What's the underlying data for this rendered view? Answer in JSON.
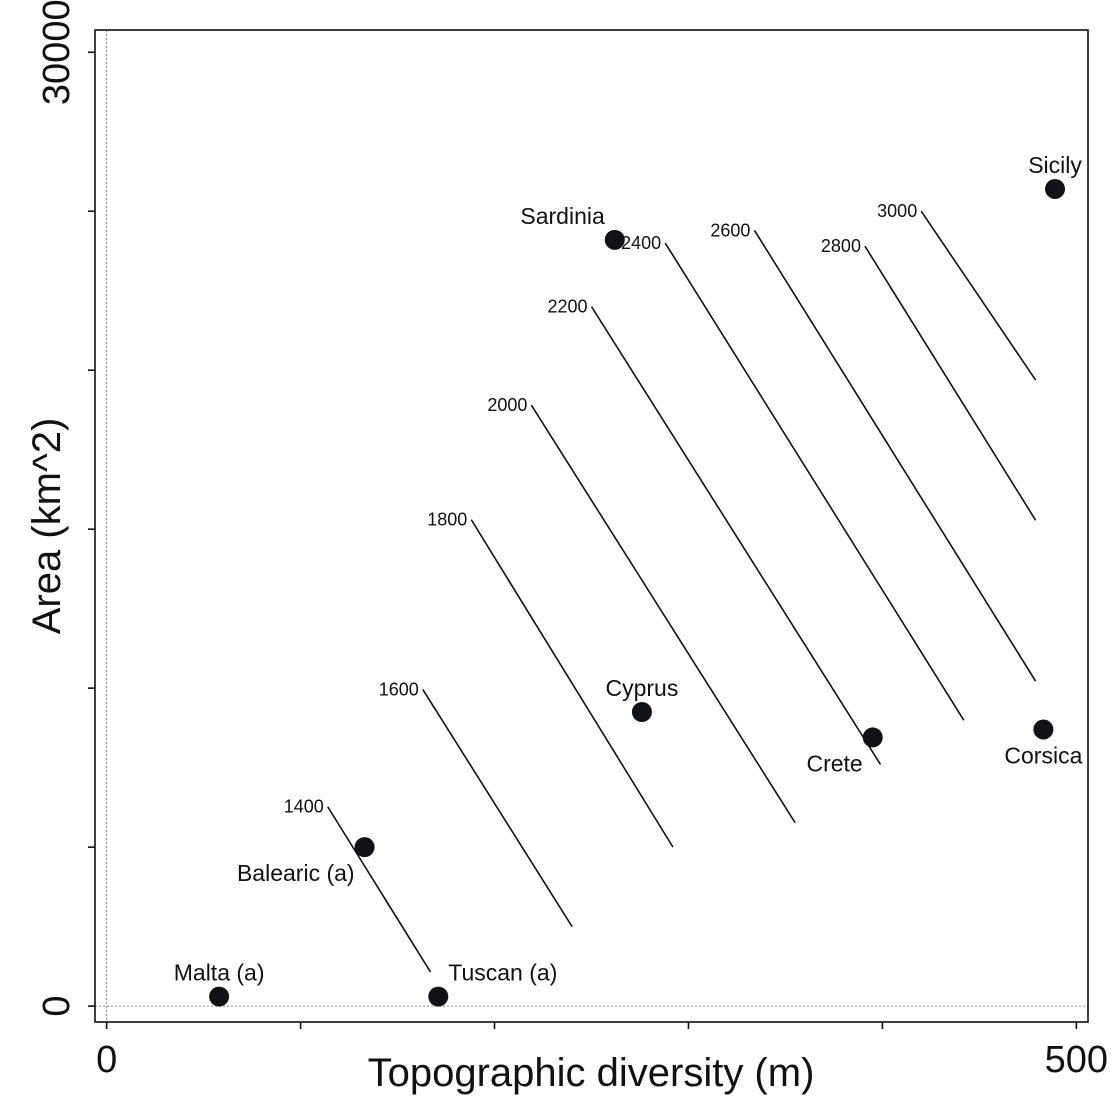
{
  "chart_data": {
    "type": "scatter",
    "title": "",
    "xlabel": "Topographic diversity (m)",
    "ylabel": "Area (km^2)",
    "xlim": [
      -6,
      506
    ],
    "ylim": [
      -500,
      30700
    ],
    "x_ticks": [
      0,
      100,
      200,
      300,
      400,
      500
    ],
    "x_tick_labels": [
      "0",
      "",
      "",
      "",
      "",
      "500"
    ],
    "y_ticks": [
      0,
      5000,
      10000,
      15000,
      20000,
      25000,
      30000
    ],
    "y_tick_labels": [
      "0",
      "",
      "",
      "",
      "",
      "",
      "30000"
    ],
    "grid": false,
    "reference_lines": {
      "x": 0,
      "y": 0,
      "style": "dotted"
    },
    "points": [
      {
        "label": "Malta (a)",
        "x": 58,
        "y": 300
      },
      {
        "label": "Tuscan (a)",
        "x": 171,
        "y": 300
      },
      {
        "label": "Balearic (a)",
        "x": 133,
        "y": 5000
      },
      {
        "label": "Cyprus",
        "x": 276,
        "y": 9250
      },
      {
        "label": "Crete",
        "x": 395,
        "y": 8450
      },
      {
        "label": "Corsica",
        "x": 483,
        "y": 8700
      },
      {
        "label": "Sardinia",
        "x": 262,
        "y": 24100
      },
      {
        "label": "Sicily",
        "x": 489,
        "y": 25700
      }
    ],
    "contours": [
      {
        "level": "1400",
        "x1": 114,
        "y1": 6270,
        "x2": 167,
        "y2": 1070
      },
      {
        "level": "1600",
        "x1": 163,
        "y1": 9960,
        "x2": 240,
        "y2": 2500
      },
      {
        "level": "1800",
        "x1": 188,
        "y1": 15300,
        "x2": 292,
        "y2": 5000
      },
      {
        "level": "2000",
        "x1": 219,
        "y1": 18900,
        "x2": 355,
        "y2": 5770
      },
      {
        "level": "2200",
        "x1": 250,
        "y1": 22000,
        "x2": 399,
        "y2": 7600
      },
      {
        "level": "2400",
        "x1": 288,
        "y1": 24000,
        "x2": 442,
        "y2": 8990
      },
      {
        "level": "2600",
        "x1": 334,
        "y1": 24400,
        "x2": 479,
        "y2": 10220
      },
      {
        "level": "2800",
        "x1": 391,
        "y1": 23900,
        "x2": 479,
        "y2": 15280
      },
      {
        "level": "3000",
        "x1": 420,
        "y1": 25000,
        "x2": 479,
        "y2": 19690
      }
    ]
  }
}
